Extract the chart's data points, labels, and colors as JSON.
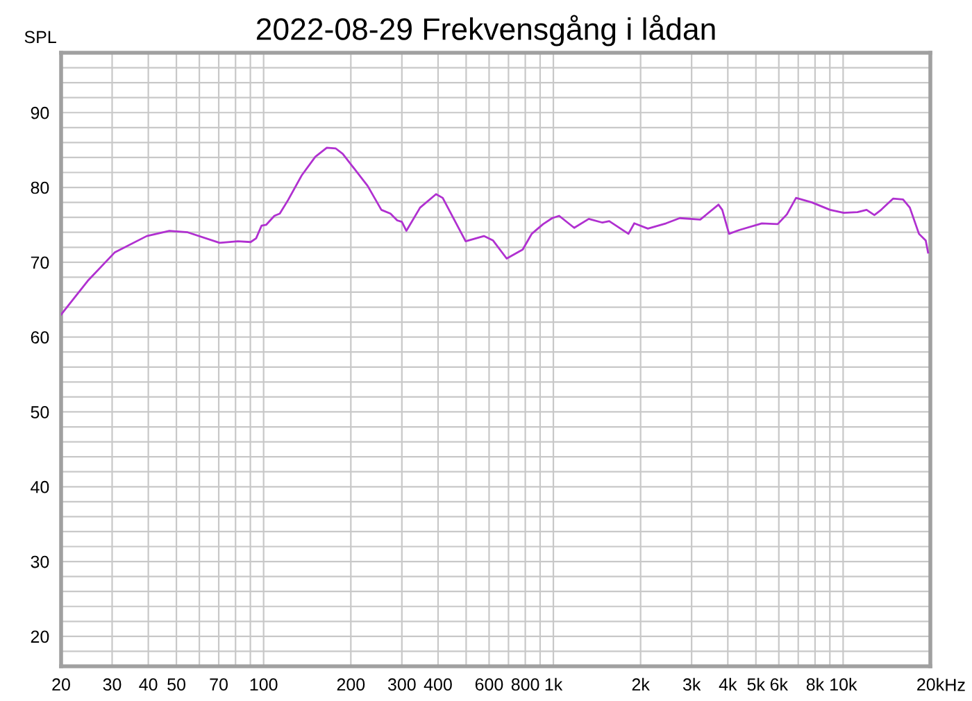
{
  "chart_data": {
    "type": "line",
    "title": "2022-08-29 Frekvensgång i lådan",
    "ylabel": "SPL",
    "x": [
      20,
      24.7,
      30.6,
      39.5,
      47.3,
      54.7,
      70.5,
      81.5,
      90.2,
      94.2,
      98.4,
      102,
      108.9,
      113.7,
      121.4,
      135.3,
      150.8,
      165.2,
      177.5,
      187.5,
      228.6,
      254.9,
      274,
      289,
      300,
      311,
      346.8,
      393.6,
      415,
      498,
      575.8,
      619.5,
      690,
      784,
      842,
      922,
      991,
      1047,
      1180,
      1325,
      1477,
      1559,
      1816,
      1902,
      2119,
      2449,
      2730,
      3213,
      3714,
      3827,
      4039,
      4376,
      5242,
      5946,
      6396,
      6880,
      7800,
      9020,
      10050,
      11210,
      12050,
      12820,
      13430,
      14870,
      16100,
      16990,
      18270,
      19280,
      19640
    ],
    "series": [
      {
        "color": "#b030d0",
        "values": [
          63.0,
          67.5,
          71.3,
          73.5,
          74.2,
          74.0,
          72.6,
          72.8,
          72.7,
          73.2,
          74.9,
          75.0,
          76.2,
          76.5,
          78.3,
          81.6,
          84.1,
          85.3,
          85.2,
          84.5,
          80.2,
          77.0,
          76.5,
          75.6,
          75.4,
          74.2,
          77.3,
          79.1,
          78.6,
          72.8,
          73.5,
          72.9,
          70.5,
          71.7,
          73.8,
          75.1,
          75.9,
          76.2,
          74.6,
          75.8,
          75.3,
          75.5,
          73.8,
          75.2,
          74.5,
          75.2,
          75.9,
          75.7,
          77.7,
          77.0,
          73.8,
          74.3,
          75.2,
          75.1,
          76.4,
          78.6,
          78.0,
          77.0,
          76.6,
          76.7,
          77.0,
          76.3,
          76.9,
          78.5,
          78.4,
          77.3,
          73.8,
          72.9,
          71.3
        ]
      }
    ],
    "log": "x",
    "xlim": [
      20,
      20000
    ],
    "ylim": [
      16,
      98
    ],
    "xticks": [
      20,
      30,
      40,
      50,
      {
        "value": 60,
        "label": null
      },
      70,
      {
        "value": 80,
        "label": null
      },
      {
        "value": 90,
        "label": null
      },
      100,
      200,
      300,
      400,
      {
        "value": 500,
        "label": null
      },
      600,
      {
        "value": 700,
        "label": null
      },
      800,
      {
        "value": 900,
        "label": null
      },
      {
        "value": 1000,
        "label": "1k"
      },
      {
        "value": 2000,
        "label": "2k"
      },
      {
        "value": 3000,
        "label": "3k"
      },
      {
        "value": 4000,
        "label": "4k"
      },
      {
        "value": 5000,
        "label": "5k"
      },
      {
        "value": 6000,
        "label": "6k"
      },
      {
        "value": 7000,
        "label": null
      },
      {
        "value": 8000,
        "label": "8k"
      },
      {
        "value": 9000,
        "label": null
      },
      {
        "value": 10000,
        "label": "10k"
      },
      {
        "value": 20000,
        "label": "20k"
      }
    ],
    "xlabel": "Hz",
    "yticks": [
      {
        "value": 18,
        "label": null
      },
      20,
      {
        "value": 22,
        "label": null
      },
      {
        "value": 24,
        "label": null
      },
      {
        "value": 26,
        "label": null
      },
      {
        "value": 28,
        "label": null
      },
      30,
      {
        "value": 32,
        "label": null
      },
      {
        "value": 34,
        "label": null
      },
      {
        "value": 36,
        "label": null
      },
      {
        "value": 38,
        "label": null
      },
      40,
      {
        "value": 42,
        "label": null
      },
      {
        "value": 44,
        "label": null
      },
      {
        "value": 46,
        "label": null
      },
      {
        "value": 48,
        "label": null
      },
      50,
      {
        "value": 52,
        "label": null
      },
      {
        "value": 54,
        "label": null
      },
      {
        "value": 56,
        "label": null
      },
      {
        "value": 58,
        "label": null
      },
      60,
      {
        "value": 62,
        "label": null
      },
      {
        "value": 64,
        "label": null
      },
      {
        "value": 66,
        "label": null
      },
      {
        "value": 68,
        "label": null
      },
      70,
      {
        "value": 72,
        "label": null
      },
      {
        "value": 74,
        "label": null
      },
      {
        "value": 76,
        "label": null
      },
      {
        "value": 78,
        "label": null
      },
      80,
      {
        "value": 82,
        "label": null
      },
      {
        "value": 84,
        "label": null
      },
      {
        "value": 86,
        "label": null
      },
      {
        "value": 88,
        "label": null
      },
      90,
      {
        "value": 92,
        "label": null
      },
      {
        "value": 94,
        "label": null
      },
      {
        "value": 96,
        "label": null
      }
    ],
    "grid": true,
    "legend": false,
    "marker": "none",
    "line_style": "solid"
  }
}
